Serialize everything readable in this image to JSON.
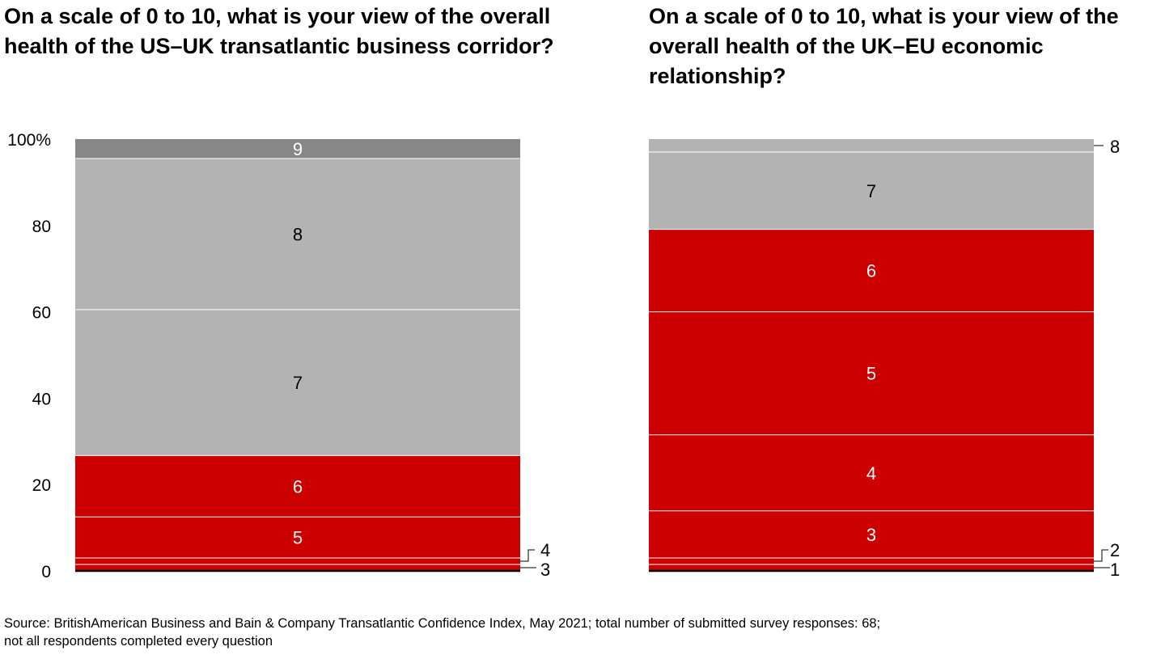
{
  "source_lines": [
    "Source: BritishAmerican Business and Bain & Company Transatlantic Confidence Index, May 2021; total number of submitted survey responses: 68;",
    "not all respondents completed every question"
  ],
  "colors": {
    "red": "#cc0000",
    "light_gray": "#b3b3b3",
    "dark_gray": "#878787",
    "separator": "#ffffff",
    "baseline": "#000000"
  },
  "chart_data": [
    {
      "type": "bar",
      "stacked": true,
      "title": "On a scale of 0 to 10, what is your view of the overall health of the US–UK transatlantic business corridor?",
      "ylim": [
        0,
        100
      ],
      "y_ticks": [
        "0",
        "20",
        "40",
        "60",
        "80",
        "100%"
      ],
      "y_tick_values": [
        0,
        20,
        40,
        60,
        80,
        100
      ],
      "segments": [
        {
          "label": "3",
          "value": 1.5,
          "color": "red",
          "label_outside": true
        },
        {
          "label": "4",
          "value": 1.5,
          "color": "red",
          "label_outside": true
        },
        {
          "label": "5",
          "value": 9.5,
          "color": "red"
        },
        {
          "label": "6",
          "value": 14.2,
          "color": "red"
        },
        {
          "label": "7",
          "value": 33.8,
          "color": "light_gray"
        },
        {
          "label": "8",
          "value": 35.0,
          "color": "light_gray"
        },
        {
          "label": "9",
          "value": 4.5,
          "color": "dark_gray"
        }
      ]
    },
    {
      "type": "bar",
      "stacked": true,
      "title": "On a scale of 0 to 10, what is your view of the overall health of the UK–EU economic relationship?",
      "ylim": [
        0,
        100
      ],
      "segments": [
        {
          "label": "1",
          "value": 1.5,
          "color": "red",
          "label_outside": true
        },
        {
          "label": "2",
          "value": 1.5,
          "color": "red",
          "label_outside": true
        },
        {
          "label": "3",
          "value": 10.9,
          "color": "red"
        },
        {
          "label": "4",
          "value": 17.6,
          "color": "red"
        },
        {
          "label": "5",
          "value": 28.5,
          "color": "red"
        },
        {
          "label": "6",
          "value": 19.1,
          "color": "red"
        },
        {
          "label": "7",
          "value": 17.9,
          "color": "light_gray"
        },
        {
          "label": "8",
          "value": 3.0,
          "color": "light_gray",
          "label_outside": true
        }
      ]
    }
  ]
}
